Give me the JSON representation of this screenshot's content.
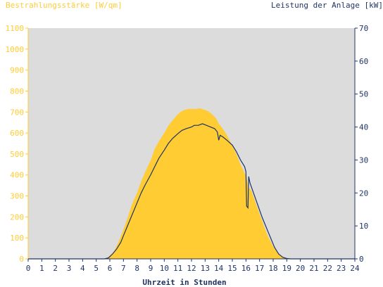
{
  "chart_data": {
    "type": "area",
    "left_axis_title": "Bestrahlungsstärke [W/qm]",
    "right_axis_title": "Leistung der Anlage [kW]",
    "xlabel": "Uhrzeit in Stunden",
    "x_ticks": [
      "0",
      "1",
      "2",
      "3",
      "4",
      "5",
      "6",
      "7",
      "8",
      "9",
      "10",
      "11",
      "12",
      "13",
      "14",
      "15",
      "16",
      "17",
      "18",
      "19",
      "20",
      "21",
      "22",
      "23",
      "24"
    ],
    "y_left_ticks": [
      "0",
      "100",
      "200",
      "300",
      "400",
      "500",
      "600",
      "700",
      "800",
      "900",
      "1000",
      "1100"
    ],
    "y_right_ticks": [
      "0",
      "10",
      "20",
      "30",
      "40",
      "50",
      "60",
      "70"
    ],
    "xlim": [
      0,
      24
    ],
    "ylim_left": [
      0,
      1100
    ],
    "ylim_right": [
      0,
      70
    ],
    "grid": false,
    "series": [
      {
        "name": "Bestrahlungsstärke",
        "type": "area",
        "axis": "left",
        "color": "#FFCC33",
        "x": [
          0,
          5.5,
          5.8,
          6.0,
          6.3,
          6.6,
          7.0,
          7.3,
          7.6,
          8.0,
          8.3,
          8.6,
          9.0,
          9.3,
          9.6,
          10.0,
          10.3,
          10.6,
          11.0,
          11.3,
          11.5,
          11.8,
          12.0,
          12.3,
          12.6,
          12.9,
          13.2,
          13.5,
          13.8,
          14.0,
          14.3,
          14.6,
          15.0,
          15.3,
          15.6,
          16.0,
          16.2,
          16.4,
          16.7,
          17.0,
          17.3,
          17.6,
          18.0,
          18.3,
          18.6,
          18.9,
          19.2,
          19.5,
          24
        ],
        "y": [
          0,
          0,
          5,
          15,
          35,
          75,
          140,
          195,
          255,
          315,
          370,
          415,
          470,
          525,
          560,
          600,
          635,
          660,
          690,
          705,
          710,
          715,
          715,
          714,
          718,
          712,
          705,
          690,
          670,
          645,
          620,
          590,
          540,
          500,
          450,
          395,
          340,
          325,
          270,
          215,
          160,
          110,
          60,
          30,
          15,
          5,
          2,
          0,
          0
        ]
      },
      {
        "name": "Leistung der Anlage",
        "type": "line",
        "axis": "right",
        "color": "#1F3466",
        "x": [
          0,
          5.6,
          5.9,
          6.2,
          6.5,
          6.8,
          7.0,
          7.3,
          7.6,
          8.0,
          8.3,
          8.6,
          9.0,
          9.3,
          9.6,
          10.0,
          10.3,
          10.6,
          11.0,
          11.3,
          11.6,
          12.0,
          12.2,
          12.5,
          12.8,
          13.1,
          13.4,
          13.7,
          13.9,
          14.0,
          14.1,
          14.3,
          14.6,
          15.0,
          15.3,
          15.6,
          15.9,
          16.0,
          16.05,
          16.15,
          16.2,
          16.3,
          16.6,
          16.9,
          17.2,
          17.5,
          17.8,
          18.1,
          18.4,
          18.7,
          19.0,
          19.3,
          24
        ],
        "y": [
          0,
          0,
          0.3,
          1.5,
          3,
          5,
          7,
          10,
          13,
          17,
          20,
          22.5,
          25.5,
          28,
          30.5,
          33,
          35,
          36.5,
          38,
          39,
          39.5,
          40,
          40.5,
          40.5,
          41,
          40.5,
          40,
          39.5,
          38.5,
          36,
          37.5,
          37,
          36,
          34.5,
          32.5,
          30,
          28,
          26.5,
          16,
          15.5,
          25,
          23,
          19.5,
          16,
          12.5,
          9.5,
          6.5,
          3.5,
          1.5,
          0.5,
          0.1,
          0,
          0
        ]
      }
    ]
  }
}
